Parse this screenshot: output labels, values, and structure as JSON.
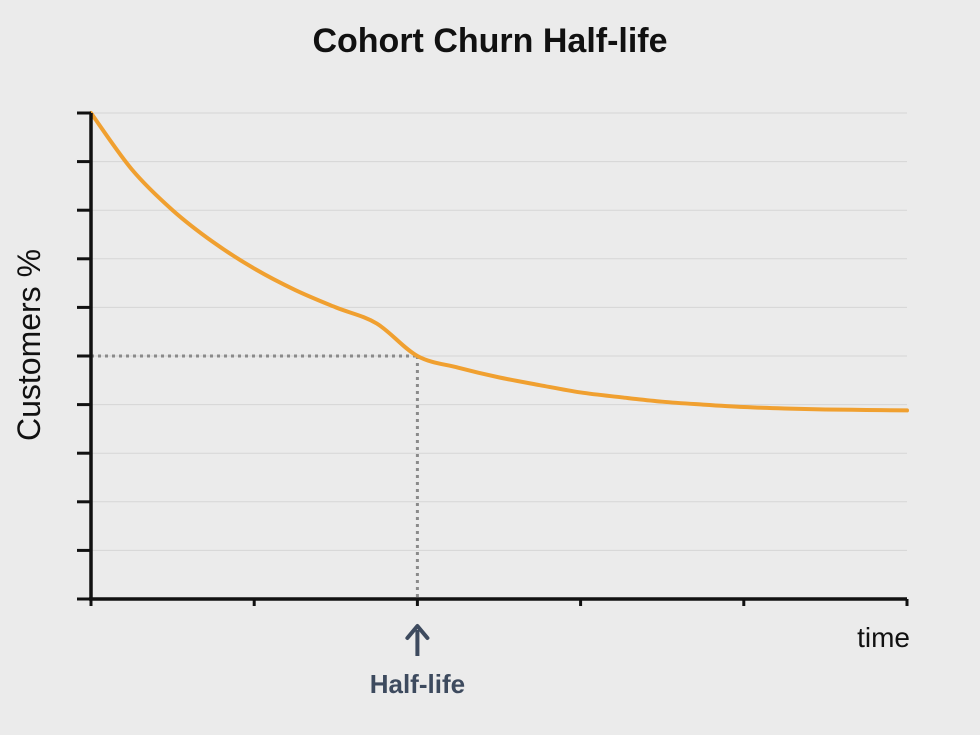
{
  "chart_data": {
    "type": "line",
    "title": "Cohort Churn Half-life",
    "xlabel": "time",
    "ylabel": "Customers %",
    "xlim": [
      0,
      5
    ],
    "ylim": [
      0,
      10
    ],
    "x_tick_count": 6,
    "y_tick_count": 11,
    "grid": "horizontal",
    "series": [
      {
        "x": [
          0,
          0.25,
          0.5,
          0.75,
          1,
          1.25,
          1.5,
          1.75,
          2,
          2.25,
          2.5,
          2.75,
          3,
          3.25,
          3.5,
          3.75,
          4,
          4.25,
          4.5,
          4.75,
          5
        ],
        "y": [
          10,
          8.84,
          8.0,
          7.34,
          6.8,
          6.36,
          6.0,
          5.67,
          5.0,
          4.76,
          4.56,
          4.4,
          4.25,
          4.15,
          4.06,
          4.0,
          3.95,
          3.92,
          3.9,
          3.89,
          3.88
        ],
        "color": "#f0a030"
      }
    ],
    "reference": {
      "x": 2,
      "y": 5,
      "style": "dotted",
      "color": "#8a8a8a"
    },
    "annotation": {
      "text": "Half-life",
      "x": 2,
      "marker": "arrow-up",
      "color": "#3d4a5e"
    }
  }
}
